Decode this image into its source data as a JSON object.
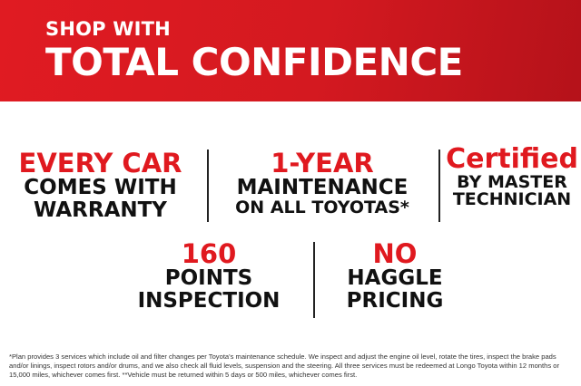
{
  "banner": {
    "line1": "SHOP WITH",
    "line2": "TOTAL CONFIDENCE"
  },
  "features": [
    {
      "headline": "EVERY CAR",
      "lines": [
        "COMES WITH",
        "WARRANTY"
      ]
    },
    {
      "headline": "1-YEAR",
      "lines": [
        "MAINTENANCE",
        "ON ALL TOYOTAS*"
      ]
    },
    {
      "headline": "Certified",
      "lines": [
        "BY MASTER",
        "TECHNICIAN"
      ]
    },
    {
      "headline": "160",
      "lines": [
        "POINTS",
        "INSPECTION"
      ]
    },
    {
      "headline": "NO",
      "lines": [
        "HAGGLE",
        "PRICING"
      ]
    }
  ],
  "footnote": "*Plan provides 3 services which include oil and filter changes per Toyota's maintenance schedule. We inspect and adjust the engine oil level, rotate the tires, inspect the brake pads and/or linings, inspect rotors and/or drums, and we also check all fluid levels, suspension and the steering.  All three services must be redeemed at Longo Toyota within 12 months or 15,000 miles, whichever comes first. **Vehicle must be returned within 5 days or 500 miles, whichever comes first.",
  "colors": {
    "accent": "#e0191f",
    "text": "#111111"
  }
}
